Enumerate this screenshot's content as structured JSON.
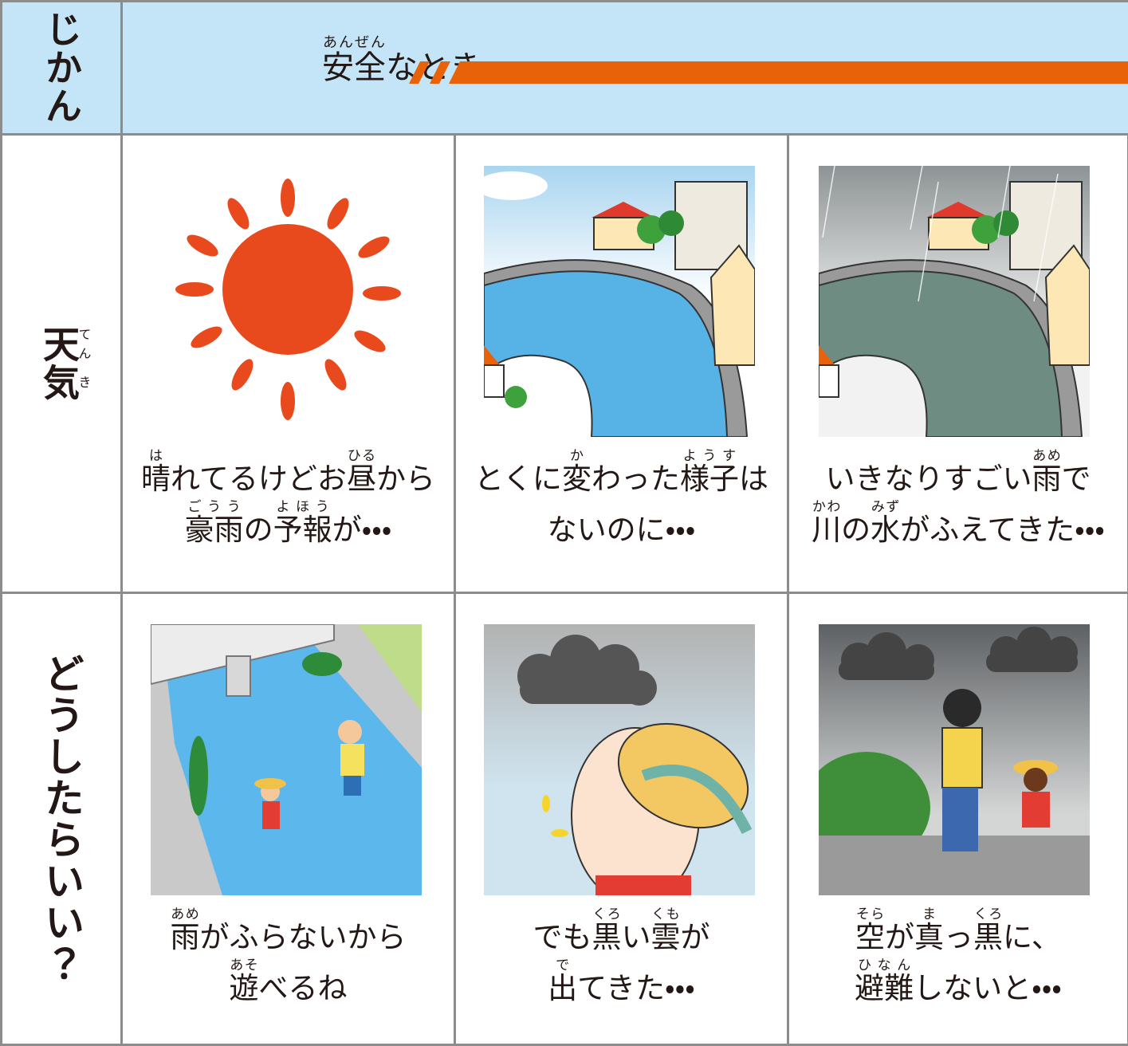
{
  "header": {
    "row_label": "じかん",
    "title": [
      {
        "text": "安全",
        "ruby": "あんぜん"
      },
      {
        "text": "なとき"
      }
    ]
  },
  "rows": [
    {
      "label": [
        {
          "text": "天",
          "ruby": "てん"
        },
        {
          "text": "気",
          "ruby": "き"
        }
      ],
      "cells": [
        {
          "lines": [
            [
              {
                "text": "晴",
                "ruby": "は"
              },
              {
                "text": "れてるけどお"
              },
              {
                "text": "昼",
                "ruby": "ひる"
              },
              {
                "text": "から"
              }
            ],
            [
              {
                "text": "豪雨",
                "ruby": "ごうう"
              },
              {
                "text": "の"
              },
              {
                "text": "予報",
                "ruby": "よほう"
              },
              {
                "text": "が・・・"
              }
            ]
          ]
        },
        {
          "lines": [
            [
              {
                "text": "とくに"
              },
              {
                "text": "変",
                "ruby": "か"
              },
              {
                "text": "わった"
              },
              {
                "text": "様子",
                "ruby": "ようす"
              },
              {
                "text": "は"
              }
            ],
            [
              {
                "text": "ないのに・・・"
              }
            ]
          ]
        },
        {
          "lines": [
            [
              {
                "text": "いきなりすごい"
              },
              {
                "text": "雨",
                "ruby": "あめ"
              },
              {
                "text": "で"
              }
            ],
            [
              {
                "text": "川",
                "ruby": "かわ"
              },
              {
                "text": "の"
              },
              {
                "text": "水",
                "ruby": "みず"
              },
              {
                "text": "がふえてきた・・・"
              }
            ]
          ]
        }
      ]
    },
    {
      "label": [
        {
          "text": "どうしたらいい？"
        }
      ],
      "cells": [
        {
          "lines": [
            [
              {
                "text": "雨",
                "ruby": "あめ"
              },
              {
                "text": "がふらないから"
              }
            ],
            [
              {
                "text": "遊",
                "ruby": "あそ"
              },
              {
                "text": "べるね"
              }
            ]
          ]
        },
        {
          "lines": [
            [
              {
                "text": "でも"
              },
              {
                "text": "黒",
                "ruby": "くろ"
              },
              {
                "text": "い"
              },
              {
                "text": "雲",
                "ruby": "くも"
              },
              {
                "text": "が"
              }
            ],
            [
              {
                "text": "出",
                "ruby": "で"
              },
              {
                "text": "てきた・・・"
              }
            ]
          ]
        },
        {
          "lines": [
            [
              {
                "text": "空",
                "ruby": "そら"
              },
              {
                "text": "が"
              },
              {
                "text": "真",
                "ruby": "ま"
              },
              {
                "text": "っ"
              },
              {
                "text": "黒",
                "ruby": "くろ"
              },
              {
                "text": "に、"
              }
            ],
            [
              {
                "text": "避難",
                "ruby": "ひなん"
              },
              {
                "text": "しないと・・・"
              }
            ]
          ]
        }
      ]
    }
  ]
}
